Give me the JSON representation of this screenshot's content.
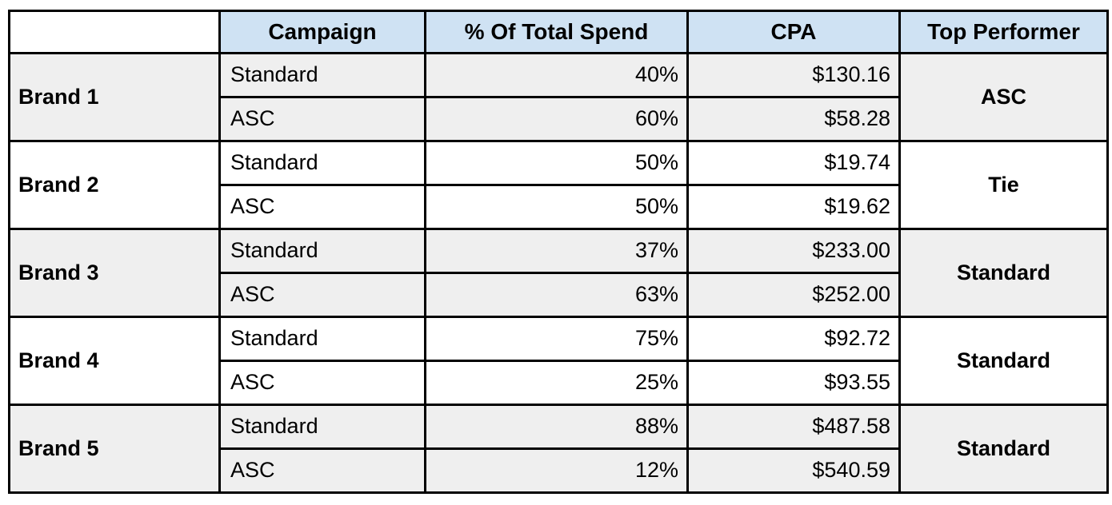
{
  "colors": {
    "header_bg": "#cfe2f3",
    "band_shaded_bg": "#efefef",
    "band_plain_bg": "#ffffff",
    "border": "#000000",
    "text": "#000000"
  },
  "table": {
    "corner_label": "",
    "columns": {
      "campaign": "Campaign",
      "spend": "% Of Total Spend",
      "cpa": "CPA",
      "top_performer": "Top Performer"
    },
    "brands": [
      {
        "name": "Brand 1",
        "top_performer": "ASC",
        "rows": [
          {
            "campaign": "Standard",
            "spend_pct": "40%",
            "cpa": "$130.16"
          },
          {
            "campaign": "ASC",
            "spend_pct": "60%",
            "cpa": "$58.28"
          }
        ]
      },
      {
        "name": "Brand 2",
        "top_performer": "Tie",
        "rows": [
          {
            "campaign": "Standard",
            "spend_pct": "50%",
            "cpa": "$19.74"
          },
          {
            "campaign": "ASC",
            "spend_pct": "50%",
            "cpa": "$19.62"
          }
        ]
      },
      {
        "name": "Brand 3",
        "top_performer": "Standard",
        "rows": [
          {
            "campaign": "Standard",
            "spend_pct": "37%",
            "cpa": "$233.00"
          },
          {
            "campaign": "ASC",
            "spend_pct": "63%",
            "cpa": "$252.00"
          }
        ]
      },
      {
        "name": "Brand 4",
        "top_performer": "Standard",
        "rows": [
          {
            "campaign": "Standard",
            "spend_pct": "75%",
            "cpa": "$92.72"
          },
          {
            "campaign": "ASC",
            "spend_pct": "25%",
            "cpa": "$93.55"
          }
        ]
      },
      {
        "name": "Brand 5",
        "top_performer": "Standard",
        "rows": [
          {
            "campaign": "Standard",
            "spend_pct": "88%",
            "cpa": "$487.58"
          },
          {
            "campaign": "ASC",
            "spend_pct": "12%",
            "cpa": "$540.59"
          }
        ]
      }
    ]
  }
}
